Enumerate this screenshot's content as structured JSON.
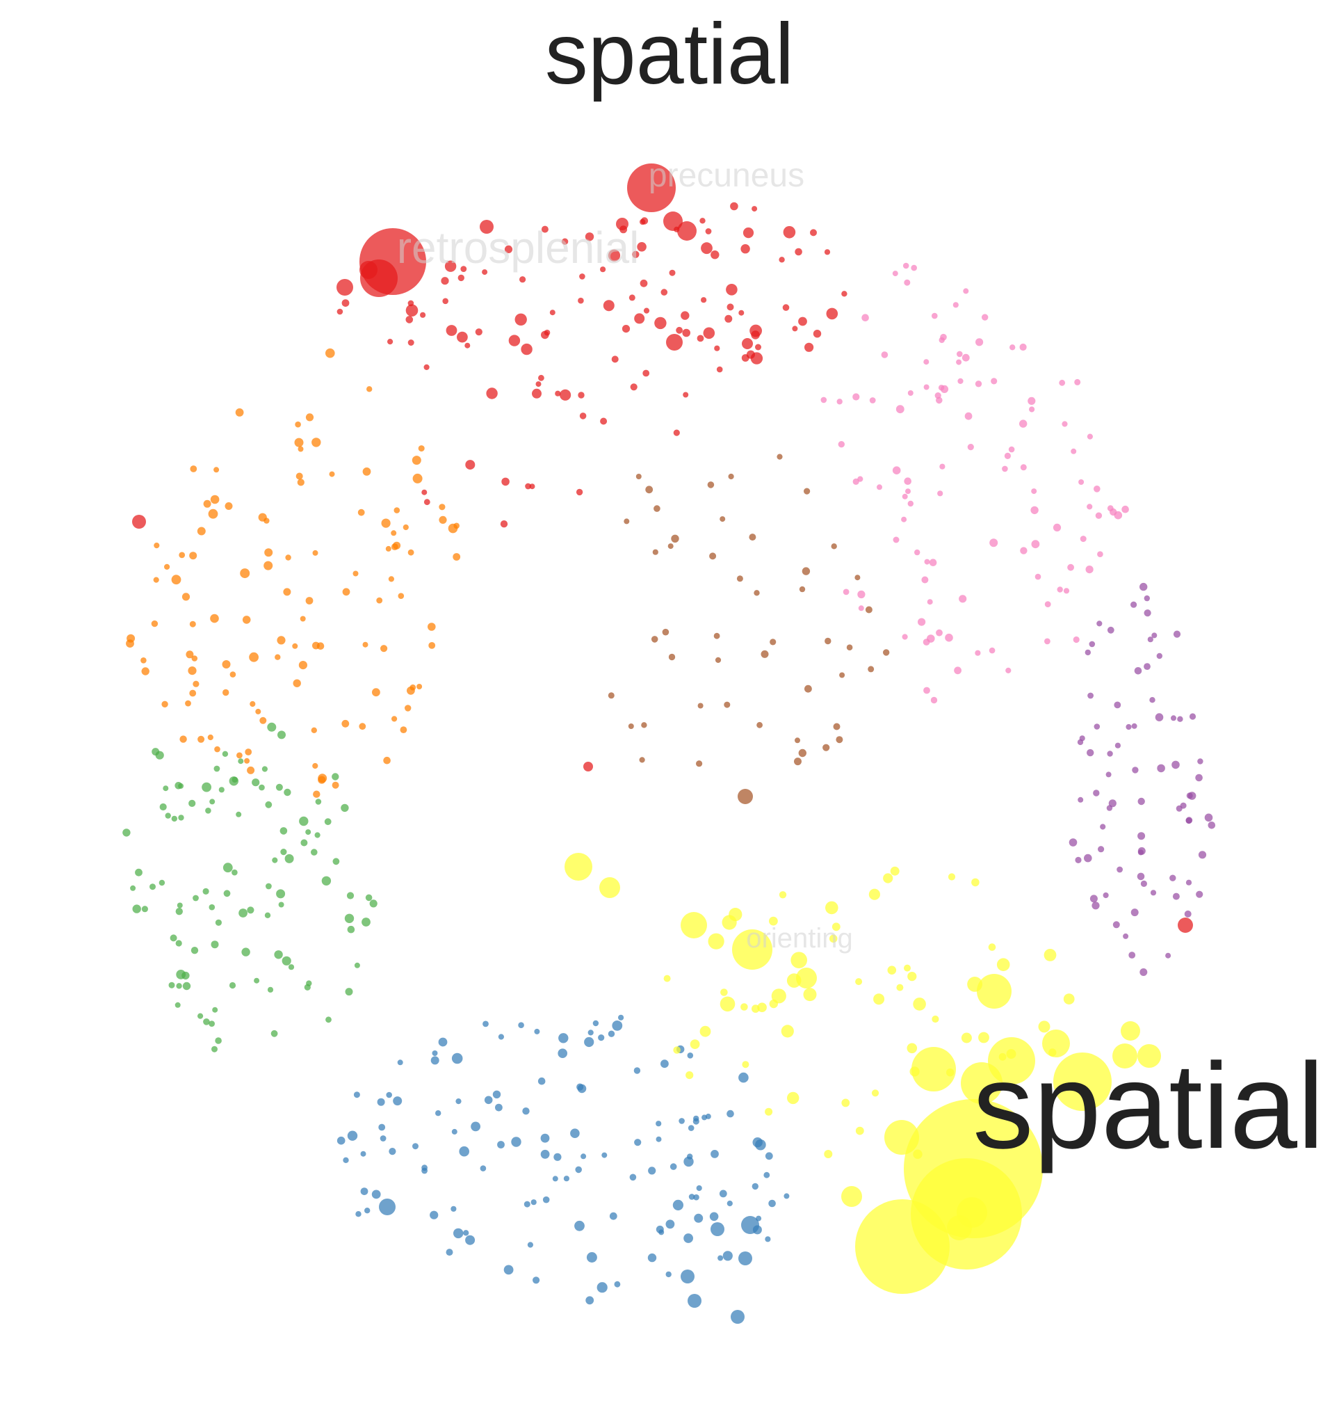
{
  "chart_data": {
    "type": "scatter",
    "title": "spatial",
    "query_term": "spatial",
    "labels": [
      "spatial",
      "retrosplenial",
      "precuneus",
      "orienting"
    ],
    "clusters": [
      {
        "color": "#e41a1c"
      },
      {
        "color": "#ff7f00"
      },
      {
        "color": "#4daf4a"
      },
      {
        "color": "#377eb8"
      },
      {
        "color": "#ffff33"
      },
      {
        "color": "#a65628"
      },
      {
        "color": "#f781bf"
      },
      {
        "color": "#984ea3"
      }
    ]
  }
}
